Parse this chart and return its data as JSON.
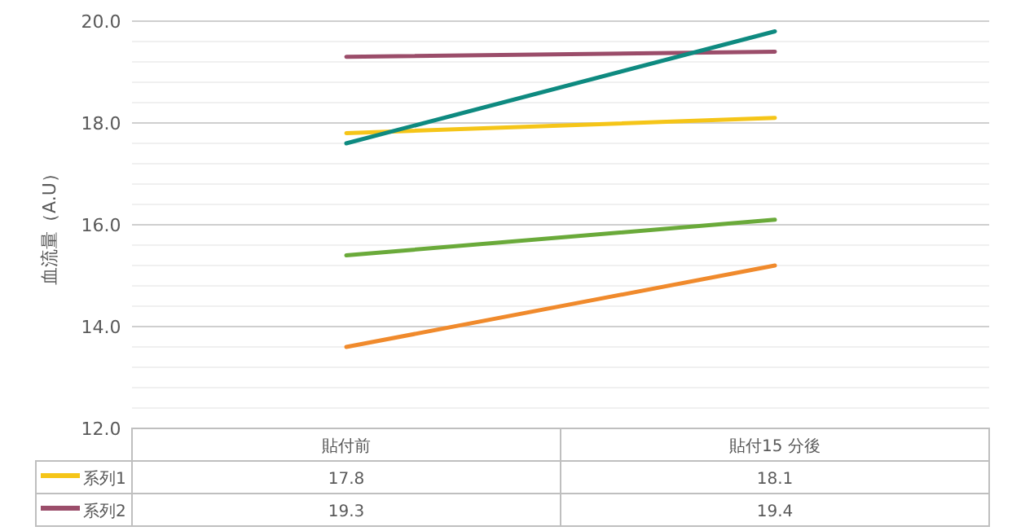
{
  "chart_data": {
    "type": "line",
    "ylabel": "血流量（A.U）",
    "categories": [
      "貼付前",
      "貼付15 分後"
    ],
    "series": [
      {
        "name": "系列1",
        "color": "#f5c518",
        "values": [
          17.8,
          18.1
        ],
        "value_labels": [
          "17.8",
          "18.1"
        ]
      },
      {
        "name": "系列2",
        "color": "#9b4d6a",
        "values": [
          19.3,
          19.4
        ],
        "value_labels": [
          "19.3",
          "19.4"
        ]
      },
      {
        "color": "#0e8a80",
        "values": [
          17.6,
          19.8
        ]
      },
      {
        "color": "#6aaa3a",
        "values": [
          15.4,
          16.1
        ]
      },
      {
        "color": "#f08a2c",
        "values": [
          13.6,
          15.2
        ]
      }
    ],
    "ylim": [
      12,
      20
    ],
    "yticks": [
      {
        "value": 12,
        "label": "12.0"
      },
      {
        "value": 12.4,
        "label": null
      },
      {
        "value": 12.8,
        "label": null
      },
      {
        "value": 13.2,
        "label": null
      },
      {
        "value": 13.6,
        "label": null
      },
      {
        "value": 14,
        "label": "14.0"
      },
      {
        "value": 14.4,
        "label": null
      },
      {
        "value": 14.8,
        "label": null
      },
      {
        "value": 15.2,
        "label": null
      },
      {
        "value": 15.6,
        "label": null
      },
      {
        "value": 16,
        "label": "16.0"
      },
      {
        "value": 16.4,
        "label": null
      },
      {
        "value": 16.8,
        "label": null
      },
      {
        "value": 17.2,
        "label": null
      },
      {
        "value": 17.6,
        "label": null
      },
      {
        "value": 18,
        "label": "18.0"
      },
      {
        "value": 18.4,
        "label": null
      },
      {
        "value": 18.8,
        "label": null
      },
      {
        "value": 19.2,
        "label": null
      },
      {
        "value": 19.6,
        "label": null
      },
      {
        "value": 20,
        "label": "20.0"
      }
    ],
    "grid": "y",
    "legend": "bottom",
    "marker": "none",
    "line_style": "solid"
  }
}
